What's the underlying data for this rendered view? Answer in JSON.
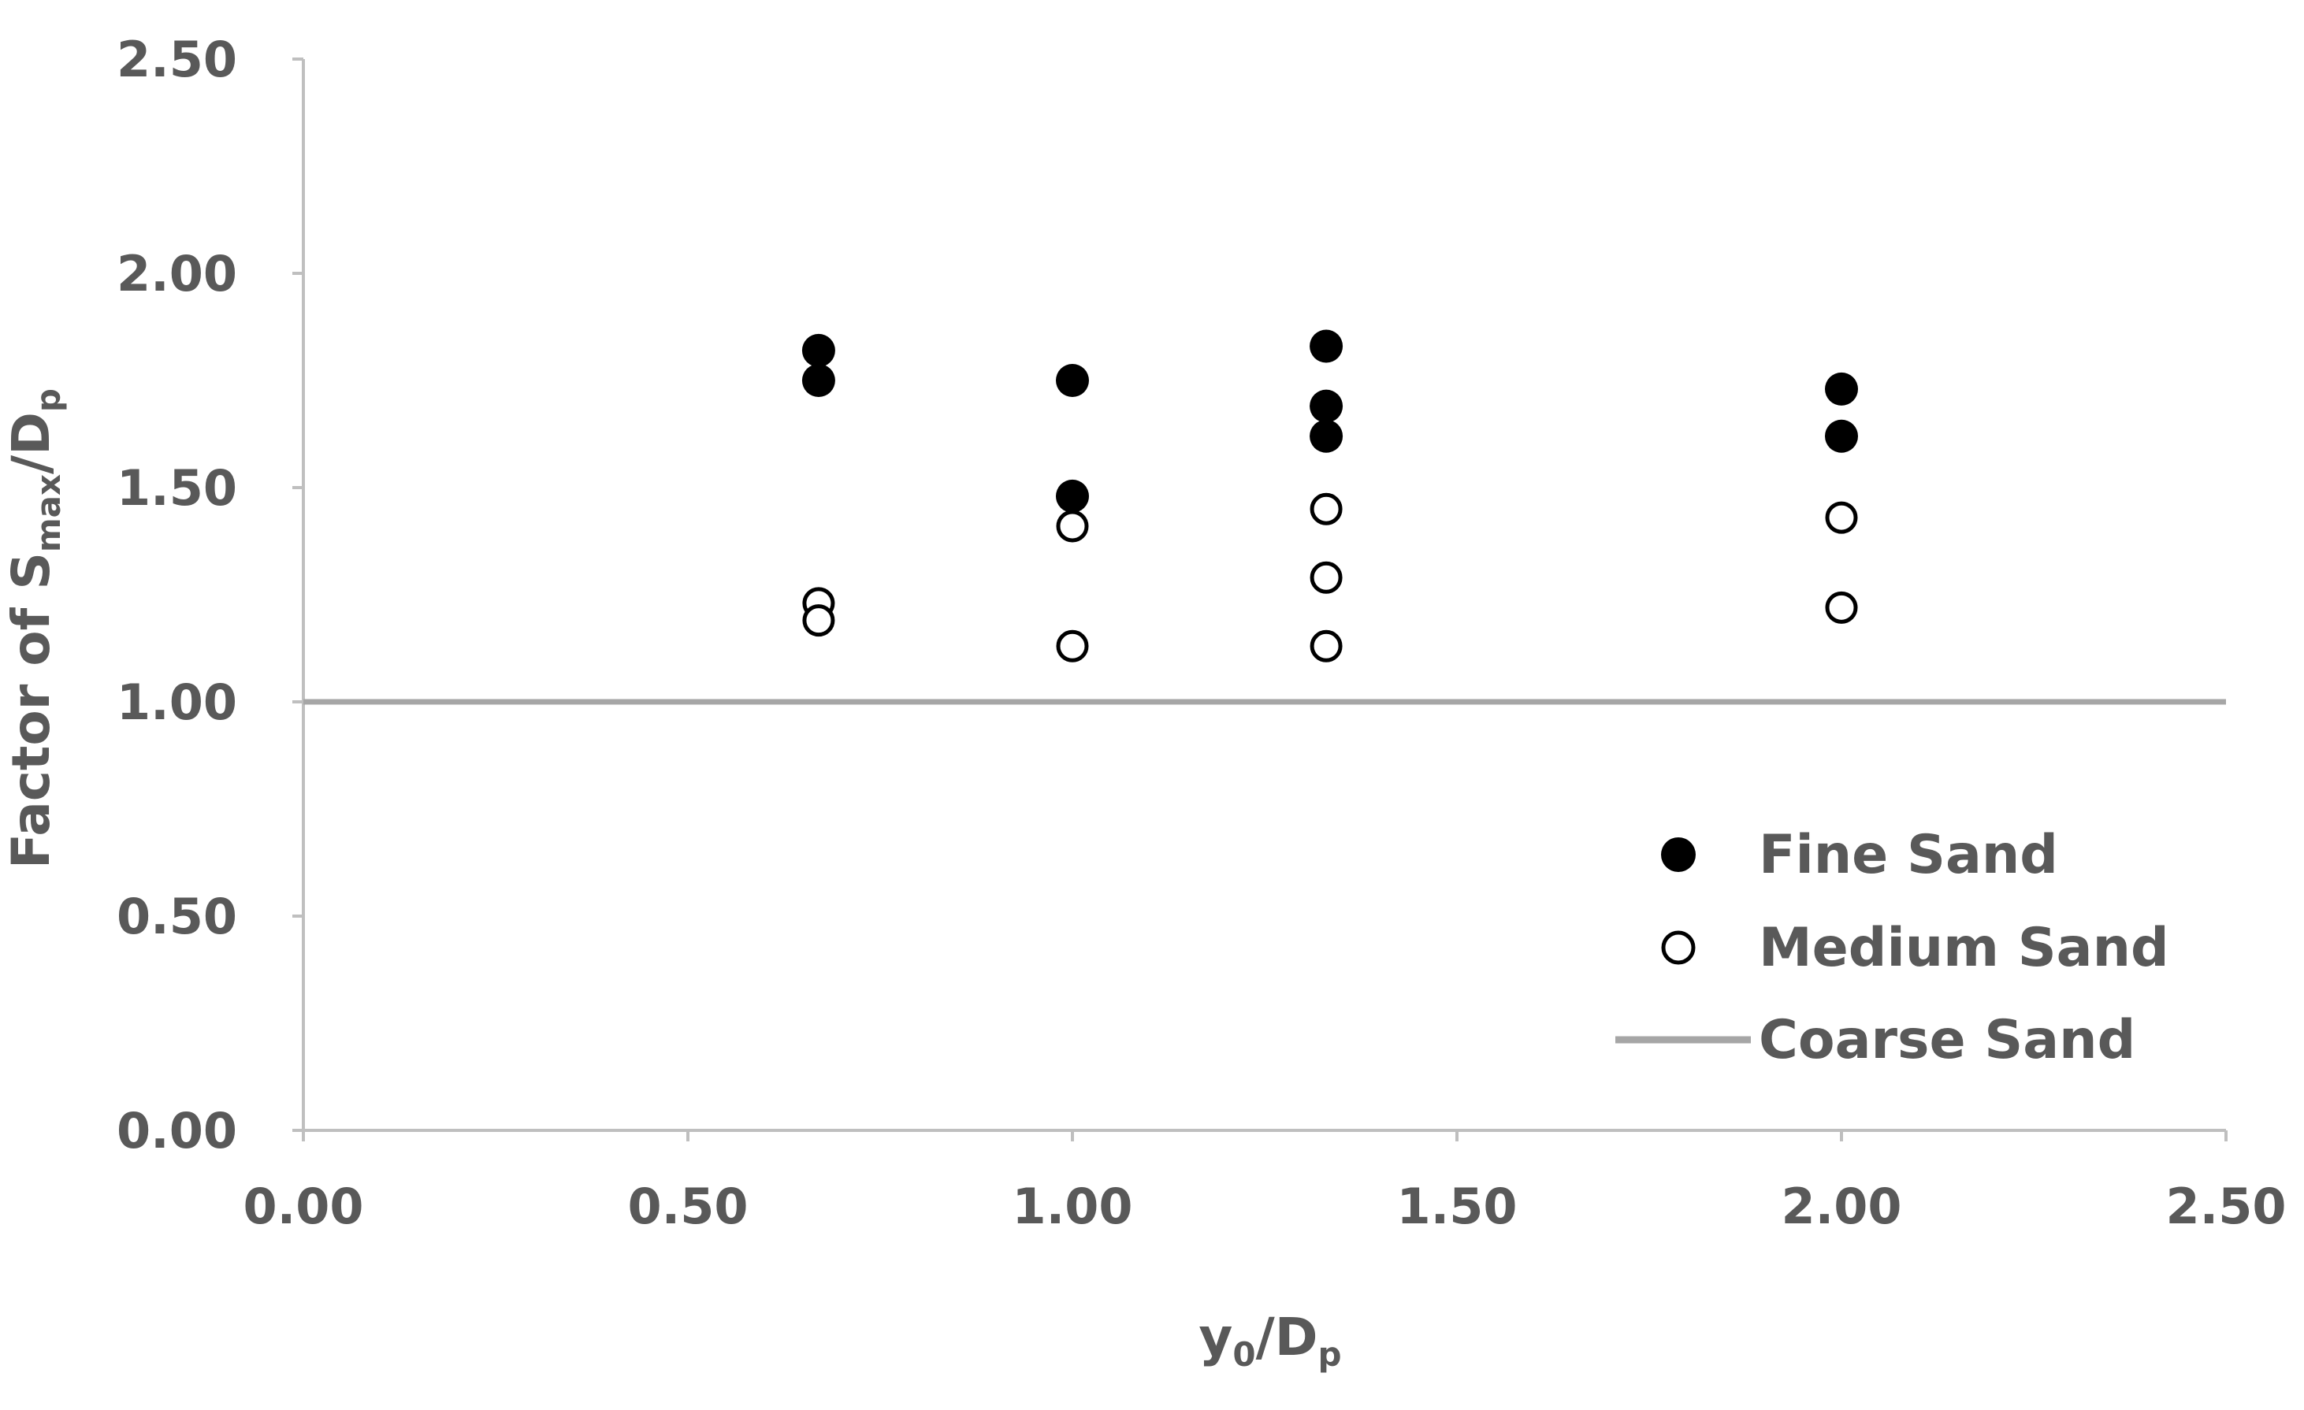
{
  "chart_data": {
    "type": "scatter",
    "xlabel": {
      "main": "y",
      "sub1": "0",
      "mid": "/D",
      "sub2": "p"
    },
    "ylabel": {
      "main": "Factor of S",
      "sub1": "max",
      "mid": "/D",
      "sub2": "p"
    },
    "xlim": [
      0,
      2.5
    ],
    "ylim": [
      0,
      2.5
    ],
    "xticks": [
      "0.00",
      "0.50",
      "1.00",
      "1.50",
      "2.00",
      "2.50"
    ],
    "yticks": [
      "0.00",
      "0.50",
      "1.00",
      "1.50",
      "2.00",
      "2.50"
    ],
    "grid": false,
    "legend_position": "bottom-right",
    "series": [
      {
        "name": "Fine Sand",
        "marker": "filled-circle",
        "color": "#000000",
        "points": [
          [
            0.67,
            1.82
          ],
          [
            0.67,
            1.75
          ],
          [
            1.0,
            1.75
          ],
          [
            1.0,
            1.48
          ],
          [
            1.33,
            1.83
          ],
          [
            1.33,
            1.69
          ],
          [
            1.33,
            1.62
          ],
          [
            2.0,
            1.73
          ],
          [
            2.0,
            1.62
          ]
        ]
      },
      {
        "name": "Medium Sand",
        "marker": "open-circle",
        "color": "#000000",
        "points": [
          [
            0.67,
            1.23
          ],
          [
            0.67,
            1.19
          ],
          [
            1.0,
            1.41
          ],
          [
            1.0,
            1.13
          ],
          [
            1.33,
            1.45
          ],
          [
            1.33,
            1.29
          ],
          [
            1.33,
            1.13
          ],
          [
            2.0,
            1.43
          ],
          [
            2.0,
            1.22
          ]
        ]
      },
      {
        "name": "Coarse Sand",
        "marker": "line",
        "color": "#a6a6a6",
        "y": 1.0
      }
    ]
  }
}
